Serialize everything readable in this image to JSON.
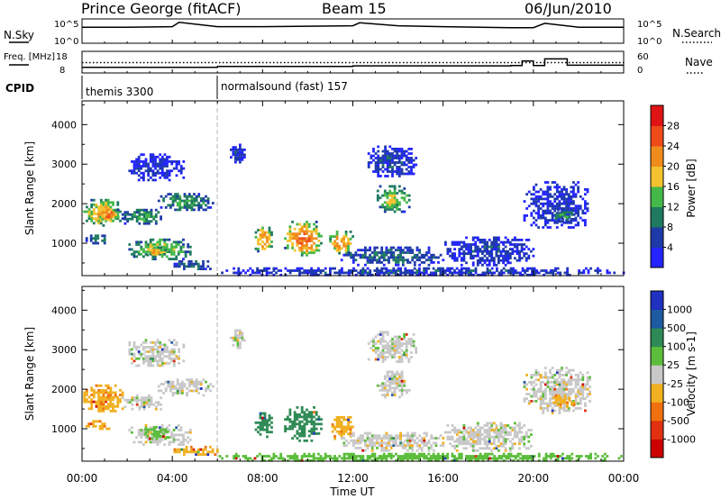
{
  "header": {
    "station": "Prince George (fitACF)",
    "beam": "Beam 15",
    "date": "06/Jun/2010"
  },
  "chart_data": [
    {
      "type": "line",
      "panel": "noise",
      "left_label": "N.Sky",
      "right_label": "N.Search",
      "left_ticks": [
        "10^5",
        "10^0"
      ],
      "right_ticks": [
        "10^5",
        "10^0"
      ],
      "x": [
        0,
        2,
        4,
        4.3,
        6,
        8,
        10,
        12,
        12.3,
        14,
        16,
        19,
        20,
        20.5,
        22,
        24
      ],
      "y_log10": [
        3.3,
        3.3,
        3.4,
        4.3,
        3.4,
        3.4,
        3.5,
        3.6,
        4.2,
        3.6,
        3.4,
        3.2,
        3.2,
        4.1,
        3.3,
        3.3
      ]
    },
    {
      "type": "line",
      "panel": "frequency",
      "left_label": "Freq. [MHz]",
      "right_label": "Nave",
      "left_ticks": [
        "18",
        "8"
      ],
      "right_ticks": [
        "60",
        "0"
      ],
      "x": [
        0,
        6,
        12,
        17,
        19,
        19.5,
        20,
        20.5,
        21.5,
        24
      ],
      "freq_mhz": [
        10.6,
        11,
        11.3,
        11.3,
        11.4,
        13.5,
        11.4,
        14.5,
        11.6,
        11.6
      ],
      "nave_ref_mhz": 12.8
    },
    {
      "type": "table",
      "panel": "cpid",
      "label": "CPID",
      "programs": [
        {
          "name": "themis 3300",
          "start_hour": 0,
          "end_hour": 6
        },
        {
          "name": "normalsound (fast) 157",
          "start_hour": 6,
          "end_hour": 24
        }
      ]
    },
    {
      "type": "heatmap",
      "panel": "power",
      "ylabel": "Slant Range [km]",
      "xlim": [
        0,
        24
      ],
      "ylim": [
        180,
        4600
      ],
      "yticks": [
        1000,
        2000,
        3000,
        4000
      ],
      "colorbar": {
        "label": "Power [dB]",
        "ticks": [
          "4",
          "8",
          "12",
          "16",
          "20",
          "24",
          "28"
        ]
      },
      "echo_regions": [
        {
          "t0": 0.0,
          "t1": 1.8,
          "r0": 1450,
          "r1": 2150,
          "val": 20
        },
        {
          "t0": 0.6,
          "t1": 1.6,
          "r0": 1600,
          "r1": 1900,
          "val": 26
        },
        {
          "t0": 1.7,
          "t1": 3.6,
          "r0": 1500,
          "r1": 1900,
          "val": 12
        },
        {
          "t0": 3.3,
          "t1": 5.8,
          "r0": 1850,
          "r1": 2300,
          "val": 12
        },
        {
          "t0": 0.1,
          "t1": 1.2,
          "r0": 1000,
          "r1": 1250,
          "val": 10
        },
        {
          "t0": 2.0,
          "t1": 4.8,
          "r0": 600,
          "r1": 1150,
          "val": 16
        },
        {
          "t0": 2.8,
          "t1": 3.7,
          "r0": 700,
          "r1": 950,
          "val": 20
        },
        {
          "t0": 4.0,
          "t1": 6.0,
          "r0": 350,
          "r1": 600,
          "val": 8
        },
        {
          "t0": 2.0,
          "t1": 4.5,
          "r0": 2600,
          "r1": 3300,
          "val": 4
        },
        {
          "t0": 7.6,
          "t1": 8.4,
          "r0": 800,
          "r1": 1450,
          "val": 22
        },
        {
          "t0": 8.9,
          "t1": 10.6,
          "r0": 700,
          "r1": 1600,
          "val": 24
        },
        {
          "t0": 10.9,
          "t1": 12.0,
          "r0": 750,
          "r1": 1350,
          "val": 22
        },
        {
          "t0": 13.0,
          "t1": 14.5,
          "r0": 1800,
          "r1": 2500,
          "val": 16
        },
        {
          "t0": 12.6,
          "t1": 14.8,
          "r0": 2700,
          "r1": 3500,
          "val": 6
        },
        {
          "t0": 11.4,
          "t1": 16.0,
          "r0": 450,
          "r1": 950,
          "val": 8
        },
        {
          "t0": 16.0,
          "t1": 20.0,
          "r0": 450,
          "r1": 1200,
          "val": 6
        },
        {
          "t0": 19.5,
          "t1": 22.5,
          "r0": 1400,
          "r1": 2600,
          "val": 5
        },
        {
          "t0": 20.8,
          "t1": 21.8,
          "r0": 1550,
          "r1": 1900,
          "val": 12
        },
        {
          "t0": 6.0,
          "t1": 24.0,
          "r0": 200,
          "r1": 420,
          "val": 6
        },
        {
          "t0": 6.5,
          "t1": 7.2,
          "r0": 3050,
          "r1": 3550,
          "val": 6
        }
      ]
    },
    {
      "type": "heatmap",
      "panel": "velocity",
      "ylabel": "Slant Range [km]",
      "xlabel": "Time UT",
      "xlim": [
        0,
        24
      ],
      "ylim": [
        180,
        4600
      ],
      "yticks": [
        1000,
        2000,
        3000,
        4000
      ],
      "xticks": [
        "00:00",
        "04:00",
        "08:00",
        "12:00",
        "16:00",
        "20:00",
        "00:00"
      ],
      "colorbar": {
        "label": "Velocity [m s-1]",
        "ticks": [
          "1000",
          "500",
          "100",
          "25",
          "-25",
          "-100",
          "-500",
          "-1000"
        ]
      },
      "echo_regions": [
        {
          "t0": 0.0,
          "t1": 1.8,
          "r0": 1450,
          "r1": 2150,
          "val": -80
        },
        {
          "t0": 1.7,
          "t1": 3.6,
          "r0": 1500,
          "r1": 1900,
          "val": 0
        },
        {
          "t0": 3.3,
          "t1": 5.8,
          "r0": 1850,
          "r1": 2300,
          "val": 0
        },
        {
          "t0": 0.1,
          "t1": 1.2,
          "r0": 1000,
          "r1": 1250,
          "val": -80
        },
        {
          "t0": 2.0,
          "t1": 4.8,
          "r0": 600,
          "r1": 1150,
          "val": 0
        },
        {
          "t0": 2.6,
          "t1": 3.8,
          "r0": 750,
          "r1": 1100,
          "val": 70
        },
        {
          "t0": 4.0,
          "t1": 6.0,
          "r0": 350,
          "r1": 600,
          "val": -80
        },
        {
          "t0": 2.0,
          "t1": 4.5,
          "r0": 2600,
          "r1": 3300,
          "val": 0
        },
        {
          "t0": 7.6,
          "t1": 8.4,
          "r0": 800,
          "r1": 1450,
          "val": 200
        },
        {
          "t0": 8.9,
          "t1": 10.6,
          "r0": 700,
          "r1": 1600,
          "val": 200
        },
        {
          "t0": 10.9,
          "t1": 12.0,
          "r0": 750,
          "r1": 1350,
          "val": -80
        },
        {
          "t0": 13.0,
          "t1": 14.5,
          "r0": 1800,
          "r1": 2500,
          "val": 0
        },
        {
          "t0": 12.6,
          "t1": 14.8,
          "r0": 2700,
          "r1": 3500,
          "val": 0
        },
        {
          "t0": 11.4,
          "t1": 16.0,
          "r0": 450,
          "r1": 950,
          "val": 0
        },
        {
          "t0": 16.0,
          "t1": 20.0,
          "r0": 450,
          "r1": 1200,
          "val": 0
        },
        {
          "t0": 19.5,
          "t1": 22.5,
          "r0": 1400,
          "r1": 2600,
          "val": 0
        },
        {
          "t0": 20.8,
          "t1": 21.8,
          "r0": 1550,
          "r1": 1900,
          "val": -80
        },
        {
          "t0": 6.0,
          "t1": 24.0,
          "r0": 200,
          "r1": 420,
          "val": 70
        },
        {
          "t0": 6.5,
          "t1": 7.2,
          "r0": 3050,
          "r1": 3550,
          "val": 0
        }
      ]
    }
  ],
  "power_scale_colors": [
    "#2424ff",
    "#1e3aa8",
    "#1f7a60",
    "#45b84a",
    "#f4c230",
    "#f08c1c",
    "#ee4a1a",
    "#e01414"
  ],
  "velocity_scale_colors": [
    "#2030c0",
    "#1e5aa0",
    "#2e8a55",
    "#5cbd3c",
    "#c8c8c8",
    "#f0b020",
    "#f07010",
    "#e03010",
    "#cc0000"
  ]
}
